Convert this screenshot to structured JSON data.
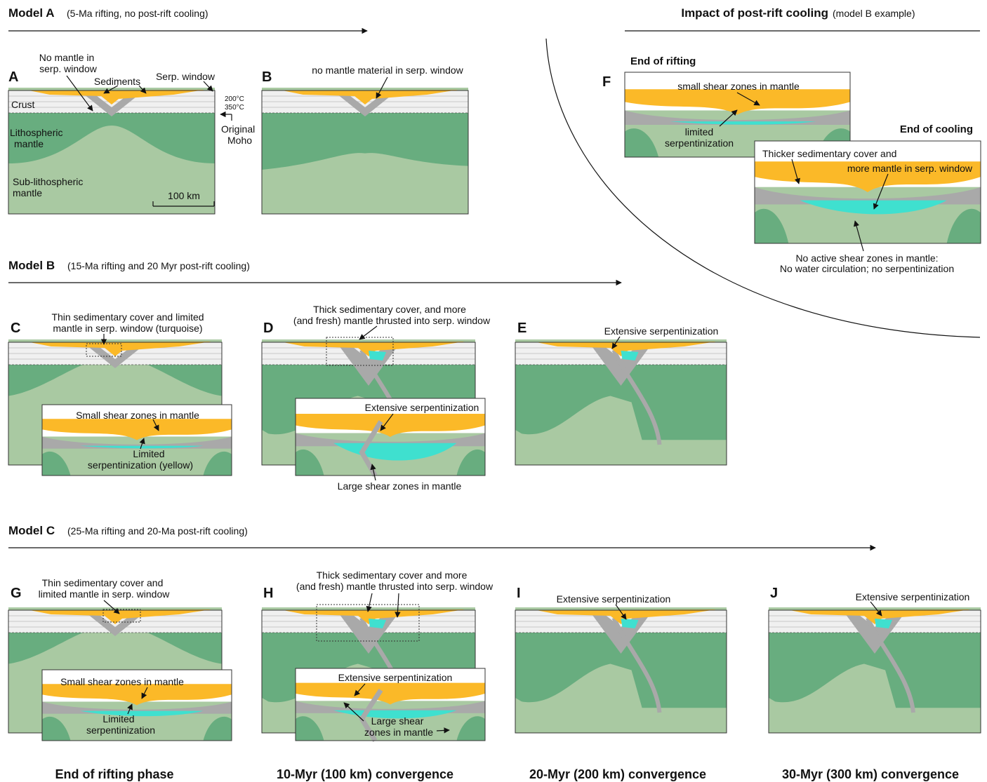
{
  "model_a": {
    "title": "Model A",
    "subtitle": "(5-Ma rifting, no post-rift cooling)"
  },
  "cooling": {
    "title": "Impact of post-rift cooling",
    "subtitle": "(model B example)"
  },
  "model_b": {
    "title": "Model B",
    "subtitle": "(15-Ma rifting and 20 Myr post-rift cooling)"
  },
  "model_c": {
    "title": "Model C",
    "subtitle": "(25-Ma  rifting and 20-Ma post-rift cooling)"
  },
  "panels": {
    "A": {
      "letter": "A",
      "notes": [
        "No mantle in",
        "serp. window",
        "Sediments",
        "Serp. window",
        "200°C",
        "350°C",
        "Crust",
        "Lithospheric",
        "mantle",
        "Original",
        "Moho",
        "Sub-lithospheric",
        "mantle",
        "100 km"
      ]
    },
    "B": {
      "letter": "B",
      "notes": [
        "no mantle material in serp. window"
      ]
    },
    "F": {
      "letter": "F",
      "heading": "End of rifting",
      "notes": [
        "small shear zones in mantle",
        "limited",
        "serpentinization"
      ],
      "heading2": "End of cooling",
      "notes2": [
        "Thicker sedimentary cover and",
        "more mantle in serp. window",
        "No active shear zones in mantle:",
        "No water circulation; no serpentinization"
      ]
    },
    "C": {
      "letter": "C",
      "notes": [
        "Thin sedimentary cover and limited",
        "mantle in serp. window (turquoise)",
        "Small shear zones in mantle",
        "Limited",
        "serpentinization (yellow)"
      ]
    },
    "D": {
      "letter": "D",
      "notes": [
        "Thick sedimentary cover, and more",
        "(and fresh) mantle thrusted into serp. window",
        "Extensive serpentinization",
        "Large shear zones in mantle"
      ]
    },
    "E": {
      "letter": "E",
      "notes": [
        "Extensive serpentinization"
      ]
    },
    "G": {
      "letter": "G",
      "notes": [
        "Thin sedimentary cover and",
        "limited mantle in serp. window",
        "Small shear zones in mantle",
        "Limited",
        "serpentinization"
      ]
    },
    "H": {
      "letter": "H",
      "notes": [
        "Thick sedimentary cover and more",
        "(and fresh) mantle thrusted into serp. window",
        "Extensive serpentinization",
        "Large shear",
        "zones in mantle"
      ]
    },
    "I": {
      "letter": "I",
      "notes": [
        "Extensive serpentinization"
      ]
    },
    "J": {
      "letter": "J",
      "notes": [
        "Extensive serpentinization"
      ]
    }
  },
  "stages": [
    "End of rifting phase",
    "10-Myr (100 km) convergence",
    "20-Myr (200 km) convergence",
    "30-Myr (300 km) convergence"
  ]
}
